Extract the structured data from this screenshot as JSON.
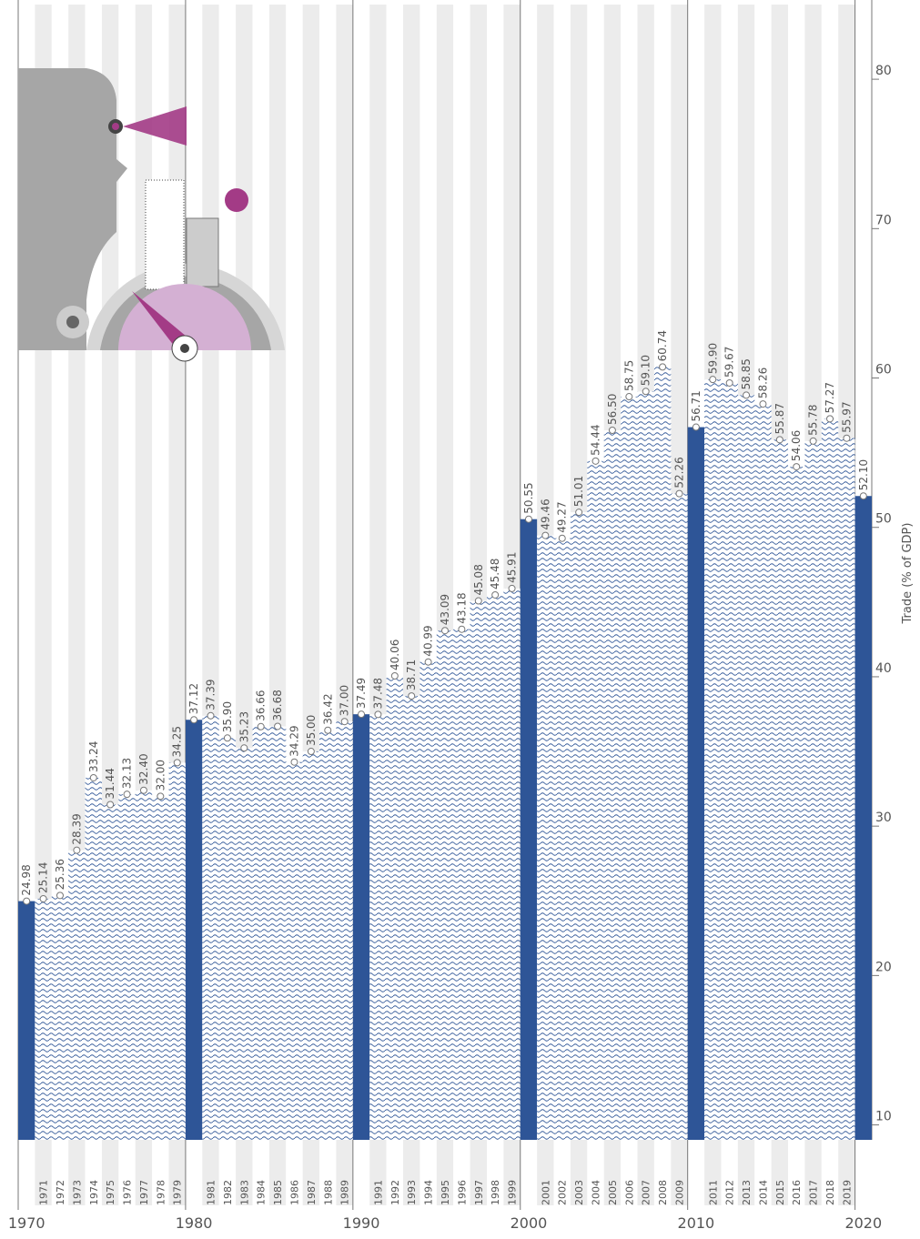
{
  "chart_data": {
    "type": "bar",
    "y_label": "Trade (% of GDP)",
    "categories": [
      "1970",
      "1971",
      "1972",
      "1973",
      "1974",
      "1975",
      "1976",
      "1977",
      "1978",
      "1979",
      "1980",
      "1981",
      "1982",
      "1983",
      "1984",
      "1985",
      "1986",
      "1987",
      "1988",
      "1989",
      "1990",
      "1991",
      "1992",
      "1993",
      "1994",
      "1995",
      "1996",
      "1997",
      "1998",
      "1999",
      "2000",
      "2001",
      "2002",
      "2003",
      "2004",
      "2005",
      "2006",
      "2007",
      "2008",
      "2009",
      "2010",
      "2011",
      "2012",
      "2013",
      "2014",
      "2015",
      "2016",
      "2017",
      "2018",
      "2019",
      "2020"
    ],
    "values": [
      24.98,
      25.14,
      25.36,
      28.39,
      33.24,
      31.44,
      32.13,
      32.4,
      32.0,
      34.25,
      37.12,
      37.39,
      35.9,
      35.23,
      36.66,
      36.68,
      34.29,
      35.0,
      36.42,
      37.0,
      37.49,
      37.48,
      40.06,
      38.71,
      40.99,
      43.09,
      43.18,
      45.08,
      45.48,
      45.91,
      50.55,
      49.46,
      49.27,
      51.01,
      54.44,
      56.5,
      58.75,
      59.1,
      60.74,
      52.26,
      56.71,
      59.9,
      59.67,
      58.85,
      58.26,
      55.87,
      54.06,
      55.78,
      57.27,
      55.97,
      52.1
    ],
    "value_labels": [
      "24.98",
      "25.14",
      "25.36",
      "28.39",
      "33.24",
      "31.44",
      "32.13",
      "32.40",
      "32.00",
      "34.25",
      "37.12",
      "37.39",
      "35.90",
      "35.23",
      "36.66",
      "36.68",
      "34.29",
      "35.00",
      "36.42",
      "37.00",
      "37.49",
      "37.48",
      "40.06",
      "38.71",
      "40.99",
      "43.09",
      "43.18",
      "45.08",
      "45.48",
      "45.91",
      "50.55",
      "49.46",
      "49.27",
      "51.01",
      "54.44",
      "56.50",
      "58.75",
      "59.10",
      "60.74",
      "52.26",
      "56.71",
      "59.90",
      "59.67",
      "58.85",
      "58.26",
      "55.87",
      "54.06",
      "55.78",
      "57.27",
      "55.97",
      "52.10"
    ],
    "color": "#2e5597",
    "ylim": [
      9,
      85
    ],
    "yticks": [
      10,
      20,
      30,
      40,
      50,
      60,
      70,
      80
    ]
  }
}
